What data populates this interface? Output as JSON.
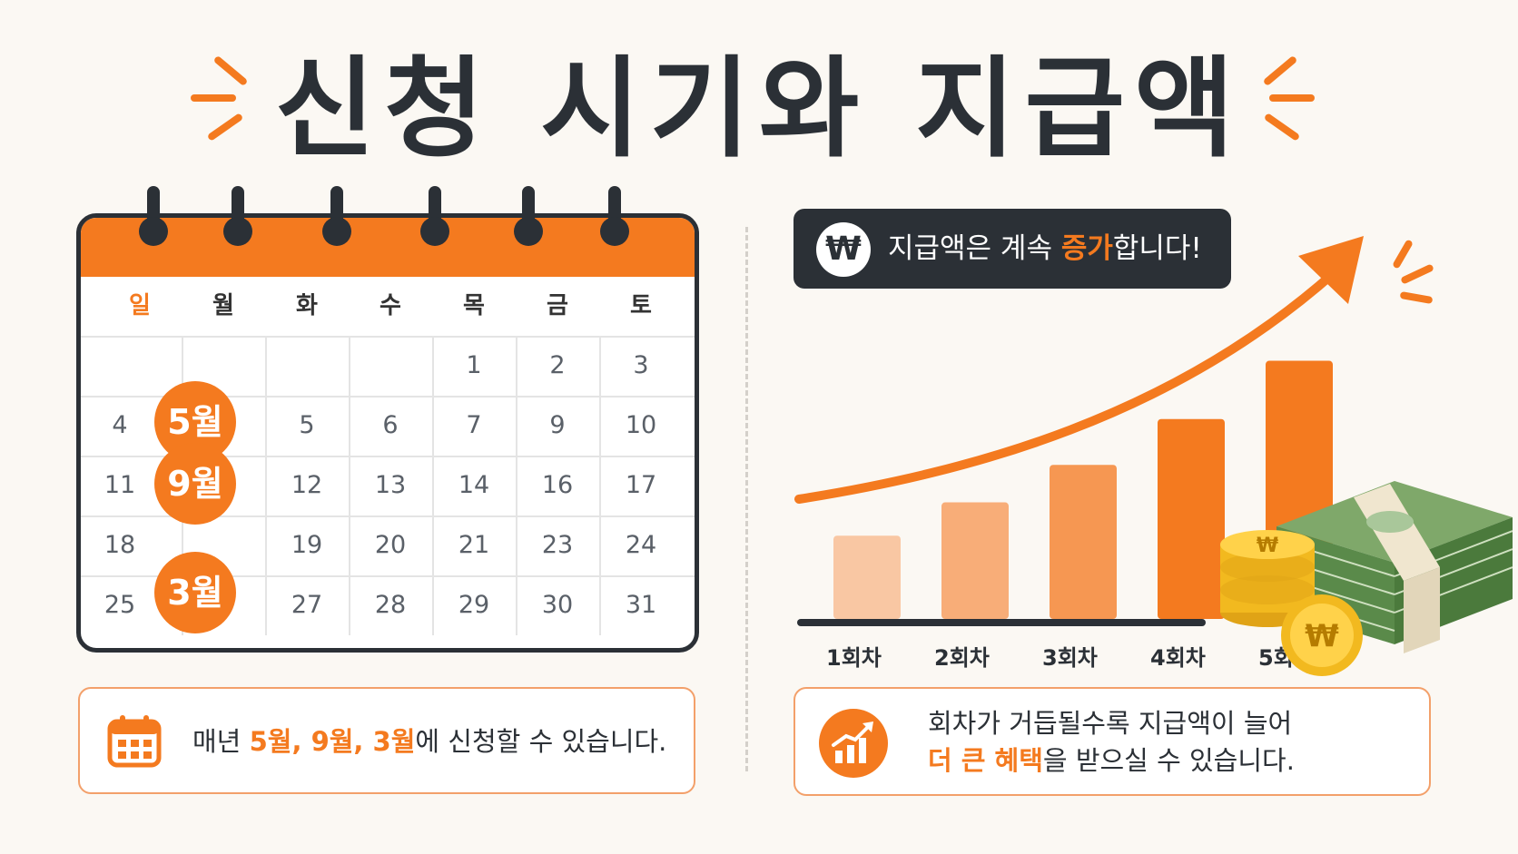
{
  "title": "신청 시기와 지급액",
  "calendar": {
    "weekdays": [
      "일",
      "월",
      "화",
      "수",
      "목",
      "금",
      "토"
    ],
    "rows": [
      [
        "",
        "",
        "",
        "",
        "1",
        "2",
        "3"
      ],
      [
        "4",
        "",
        "5",
        "6",
        "7",
        "9",
        "10"
      ],
      [
        "11",
        "",
        "12",
        "13",
        "14",
        "16",
        "17"
      ],
      [
        "18",
        "",
        "19",
        "20",
        "21",
        "23",
        "24"
      ],
      [
        "25",
        "",
        "27",
        "28",
        "29",
        "30",
        "31"
      ]
    ],
    "highlight_months": [
      "5월",
      "9월",
      "3월"
    ]
  },
  "schedule_note": {
    "prefix": "매년 ",
    "months_text": "5월, 9월, 3월",
    "suffix": "에 신청할 수 있습니다."
  },
  "banner": {
    "icon": "won-coin-icon",
    "currency_symbol": "₩",
    "text_before": "지급액은 계속 ",
    "highlight": "증가",
    "text_after": "합니다!"
  },
  "chart_data": {
    "type": "bar",
    "categories": [
      "1회차",
      "2회차",
      "3회차",
      "4회차",
      "5회차"
    ],
    "values": [
      1,
      1.4,
      1.85,
      2.4,
      3.1
    ],
    "title": "",
    "xlabel": "",
    "ylabel": "",
    "ylim": [
      0,
      3.4
    ],
    "colors": [
      "#f9c7a3",
      "#f8ad78",
      "#f69752",
      "#f47a1f",
      "#f47a1f"
    ],
    "trend_arrow": true
  },
  "benefit_note": {
    "icon": "growth-chart-icon",
    "line1": "회차가 거듭될수록 지급액이 늘어",
    "line2_highlight": "더 큰 혜택",
    "line2_rest": "을 받으실 수 있습니다."
  },
  "colors": {
    "accent": "#f47a1f",
    "dark": "#2b3036",
    "background": "#fbf8f3"
  }
}
